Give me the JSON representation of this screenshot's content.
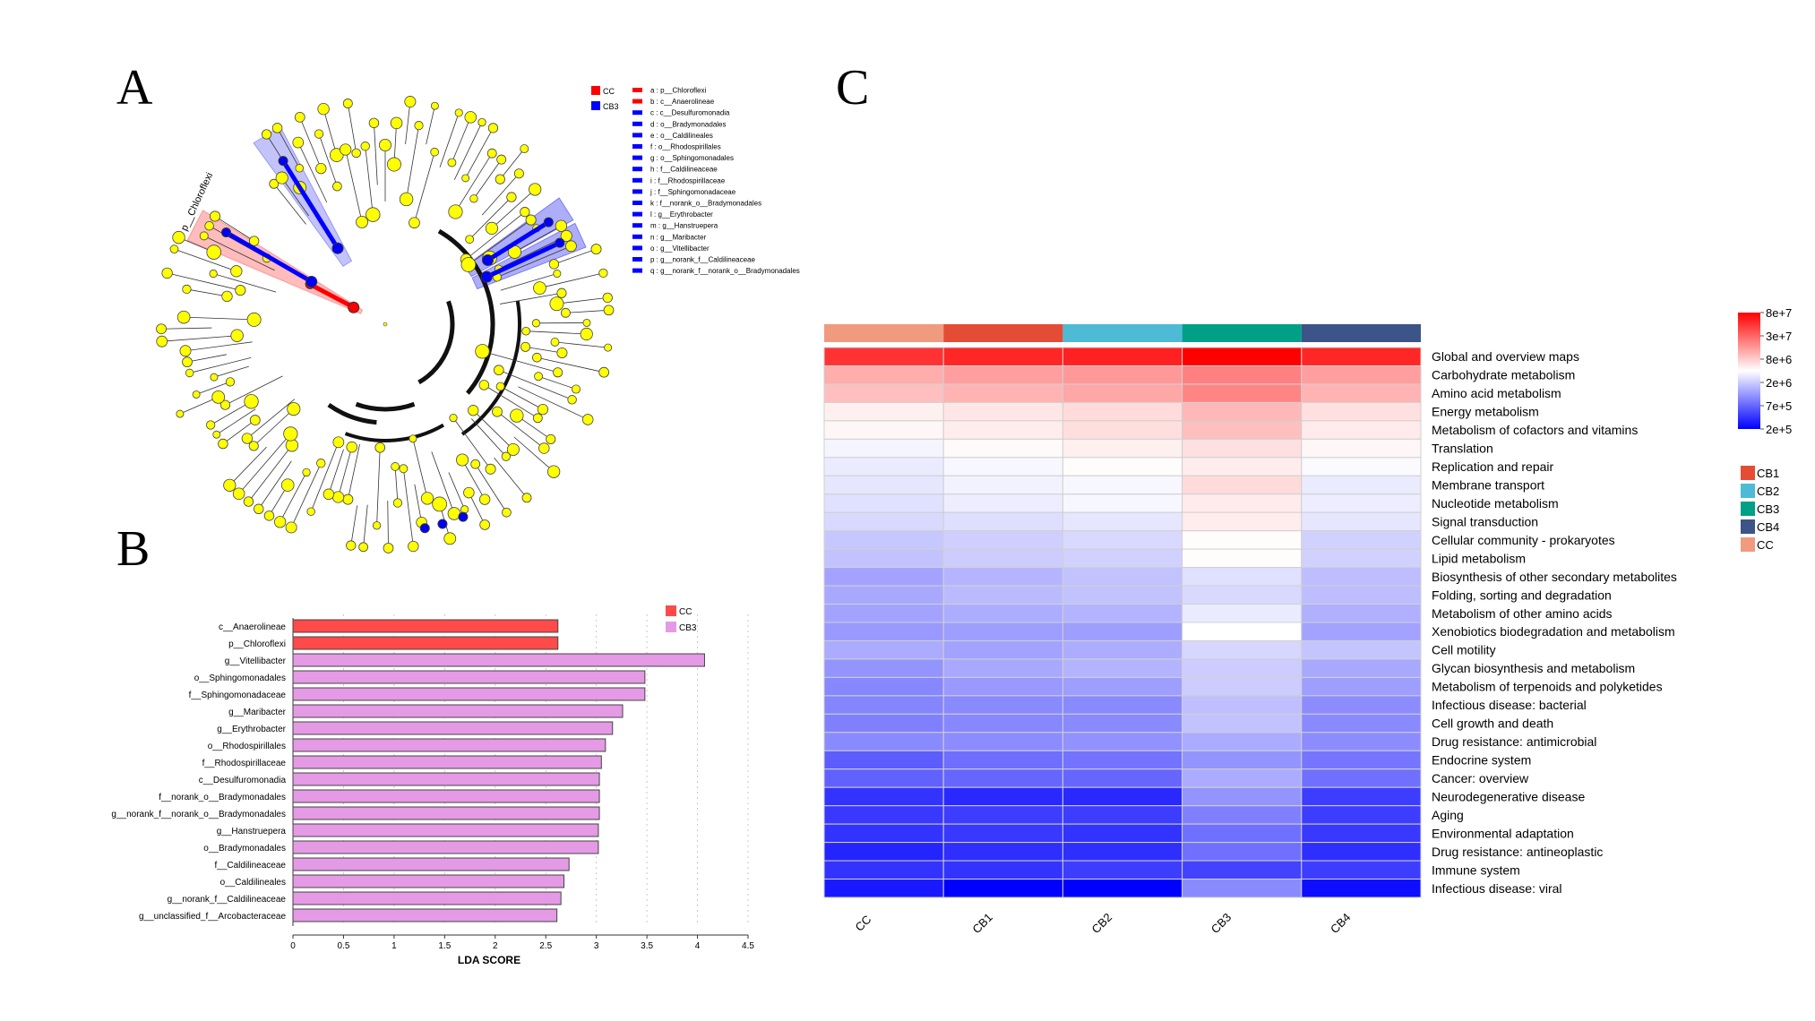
{
  "panels": {
    "a_label": "A",
    "b_label": "B",
    "c_label": "C"
  },
  "chart_data": [
    {
      "id": "cladogram",
      "type": "cladogram",
      "title": "",
      "colors": {
        "CC": "#ff0000",
        "CB3": "#0000ff",
        "node": "#ffff00"
      },
      "legend_groups": [
        {
          "name": "CC",
          "color": "#ff0000"
        },
        {
          "name": "CB3",
          "color": "#0000ff"
        }
      ],
      "highlighted_clade_label": "p__Chloroflexi",
      "taxa": [
        {
          "key": "a",
          "name": "p__Chloroflexi",
          "group": "CC"
        },
        {
          "key": "b",
          "name": "c__Anaerolineae",
          "group": "CC"
        },
        {
          "key": "c",
          "name": "c__Desulfuromonadia",
          "group": "CB3"
        },
        {
          "key": "d",
          "name": "o__Bradymonadales",
          "group": "CB3"
        },
        {
          "key": "e",
          "name": "o__Caldilineales",
          "group": "CB3"
        },
        {
          "key": "f",
          "name": "o__Rhodospirillales",
          "group": "CB3"
        },
        {
          "key": "g",
          "name": "o__Sphingomonadales",
          "group": "CB3"
        },
        {
          "key": "h",
          "name": "f__Caldilineaceae",
          "group": "CB3"
        },
        {
          "key": "i",
          "name": "f__Rhodospirillaceae",
          "group": "CB3"
        },
        {
          "key": "j",
          "name": "f__Sphingomonadaceae",
          "group": "CB3"
        },
        {
          "key": "k",
          "name": "f__norank_o__Bradymonadales",
          "group": "CB3"
        },
        {
          "key": "l",
          "name": "g__Erythrobacter",
          "group": "CB3"
        },
        {
          "key": "m",
          "name": "g__Hanstruepera",
          "group": "CB3"
        },
        {
          "key": "n",
          "name": "g__Maribacter",
          "group": "CB3"
        },
        {
          "key": "o",
          "name": "g__Vitellibacter",
          "group": "CB3"
        },
        {
          "key": "p",
          "name": "g__norank_f__Caldilineaceae",
          "group": "CB3"
        },
        {
          "key": "q",
          "name": "g__norank_f__norank_o__Bradymonadales",
          "group": "CB3"
        }
      ]
    },
    {
      "id": "lda",
      "type": "bar",
      "orientation": "horizontal",
      "title": "",
      "xlabel": "LDA SCORE",
      "ylabel": "",
      "xlim": [
        0,
        4.5
      ],
      "xticks": [
        "0",
        "0.5",
        "1",
        "1.5",
        "2",
        "2.5",
        "3",
        "3.5",
        "4",
        "4.5"
      ],
      "grid": "vertical-dotted",
      "legend_position": "top-right",
      "legend": [
        {
          "name": "CC",
          "color": "#ff4a4a"
        },
        {
          "name": "CB3",
          "color": "#e49ae4"
        }
      ],
      "categories": [
        "c__Anaerolineae",
        "p__Chloroflexi",
        "g__Vitellibacter",
        "o__Sphingomonadales",
        "f__Sphingomonadaceae",
        "g__Maribacter",
        "g__Erythrobacter",
        "o__Rhodospirillales",
        "f__Rhodospirillaceae",
        "c__Desulfuromonadia",
        "f__norank_o__Bradymonadales",
        "g__norank_f__norank_o__Bradymonadales",
        "g__Hanstruepera",
        "o__Bradymonadales",
        "f__Caldilineaceae",
        "o__Caldilineales",
        "g__norank_f__Caldilineaceae",
        "g__unclassified_f__Arcobacteraceae"
      ],
      "values": [
        2.62,
        2.62,
        4.07,
        3.48,
        3.48,
        3.26,
        3.16,
        3.09,
        3.05,
        3.03,
        3.03,
        3.03,
        3.02,
        3.02,
        2.73,
        2.68,
        2.65,
        2.61
      ],
      "groups": [
        "CC",
        "CC",
        "CB3",
        "CB3",
        "CB3",
        "CB3",
        "CB3",
        "CB3",
        "CB3",
        "CB3",
        "CB3",
        "CB3",
        "CB3",
        "CB3",
        "CB3",
        "CB3",
        "CB3",
        "CB3"
      ]
    },
    {
      "id": "heatmap",
      "type": "heatmap",
      "title": "",
      "columns": [
        "CC",
        "CB1",
        "CB2",
        "CB3",
        "CB4"
      ],
      "column_group_colors": {
        "CC": "#f09a80",
        "CB1": "#e54c36",
        "CB2": "#4dbbd5",
        "CB3": "#00a087",
        "CB4": "#3c5488"
      },
      "group_legend": [
        {
          "name": "CB1",
          "color": "#e54c36"
        },
        {
          "name": "CB2",
          "color": "#4dbbd5"
        },
        {
          "name": "CB3",
          "color": "#00a087"
        },
        {
          "name": "CB4",
          "color": "#3c5488"
        },
        {
          "name": "CC",
          "color": "#f09a80"
        }
      ],
      "colorbar": {
        "ticks": [
          "8e+7",
          "3e+7",
          "8e+6",
          "2e+6",
          "7e+5",
          "2e+5"
        ],
        "low_color": "#0000ff",
        "mid_color": "#ffffff",
        "high_color": "#ff0000",
        "scale": "log"
      },
      "value_encoding": "relative log-scale intensity: -1 = 2e+5 (blue), 0 = midpoint (white), 1 = 8e+7 (red)",
      "rows": [
        {
          "name": "Global and overview maps",
          "values": [
            0.8,
            0.85,
            0.87,
            1.0,
            0.85
          ]
        },
        {
          "name": "Carbohydrate metabolism",
          "values": [
            0.32,
            0.38,
            0.4,
            0.5,
            0.38
          ]
        },
        {
          "name": "Amino acid metabolism",
          "values": [
            0.25,
            0.3,
            0.35,
            0.48,
            0.3
          ]
        },
        {
          "name": "Energy metabolism",
          "values": [
            0.06,
            0.1,
            0.14,
            0.28,
            0.12
          ]
        },
        {
          "name": "Metabolism of cofactors and vitamins",
          "values": [
            0.03,
            0.07,
            0.13,
            0.25,
            0.08
          ]
        },
        {
          "name": "Translation",
          "values": [
            -0.04,
            0.02,
            0.06,
            0.12,
            0.03
          ]
        },
        {
          "name": "Replication and repair",
          "values": [
            -0.08,
            -0.03,
            0.01,
            0.07,
            -0.02
          ]
        },
        {
          "name": "Membrane transport",
          "values": [
            -0.1,
            -0.05,
            -0.03,
            0.14,
            -0.08
          ]
        },
        {
          "name": "Nucleotide metabolism",
          "values": [
            -0.12,
            -0.07,
            -0.03,
            0.08,
            -0.07
          ]
        },
        {
          "name": "Signal transduction",
          "values": [
            -0.15,
            -0.13,
            -0.1,
            0.07,
            -0.1
          ]
        },
        {
          "name": "Cellular community - prokaryotes",
          "values": [
            -0.22,
            -0.19,
            -0.15,
            0.01,
            -0.18
          ]
        },
        {
          "name": "Lipid metabolism",
          "values": [
            -0.24,
            -0.2,
            -0.18,
            0.01,
            -0.18
          ]
        },
        {
          "name": "Biosynthesis of other secondary metabolites",
          "values": [
            -0.36,
            -0.29,
            -0.24,
            -0.12,
            -0.26
          ]
        },
        {
          "name": "Folding, sorting and degradation",
          "values": [
            -0.34,
            -0.27,
            -0.24,
            -0.15,
            -0.26
          ]
        },
        {
          "name": "Metabolism of other amino acids",
          "values": [
            -0.36,
            -0.32,
            -0.3,
            -0.08,
            -0.31
          ]
        },
        {
          "name": "Xenobiotics biodegradation and metabolism",
          "values": [
            -0.4,
            -0.38,
            -0.38,
            0.0,
            -0.36
          ]
        },
        {
          "name": "Cell motility",
          "values": [
            -0.33,
            -0.36,
            -0.32,
            -0.16,
            -0.23
          ]
        },
        {
          "name": "Glycan biosynthesis and metabolism",
          "values": [
            -0.42,
            -0.34,
            -0.3,
            -0.2,
            -0.34
          ]
        },
        {
          "name": "Metabolism of terpenoids and polyketides",
          "values": [
            -0.47,
            -0.4,
            -0.38,
            -0.2,
            -0.38
          ]
        },
        {
          "name": "Infectious disease: bacterial",
          "values": [
            -0.48,
            -0.46,
            -0.46,
            -0.25,
            -0.45
          ]
        },
        {
          "name": "Cell growth and death",
          "values": [
            -0.5,
            -0.47,
            -0.46,
            -0.24,
            -0.46
          ]
        },
        {
          "name": "Drug resistance: antimicrobial",
          "values": [
            -0.46,
            -0.45,
            -0.43,
            -0.33,
            -0.45
          ]
        },
        {
          "name": "Endocrine system",
          "values": [
            -0.64,
            -0.57,
            -0.55,
            -0.42,
            -0.54
          ]
        },
        {
          "name": "Cancer: overview",
          "values": [
            -0.62,
            -0.6,
            -0.6,
            -0.33,
            -0.56
          ]
        },
        {
          "name": "Neurodegenerative disease",
          "values": [
            -0.8,
            -0.84,
            -0.84,
            -0.42,
            -0.76
          ]
        },
        {
          "name": "Aging",
          "values": [
            -0.78,
            -0.76,
            -0.76,
            -0.5,
            -0.76
          ]
        },
        {
          "name": "Environmental adaptation",
          "values": [
            -0.8,
            -0.78,
            -0.8,
            -0.56,
            -0.78
          ]
        },
        {
          "name": "Drug resistance: antineoplastic",
          "values": [
            -0.86,
            -0.82,
            -0.82,
            -0.56,
            -0.82
          ]
        },
        {
          "name": "Immune system",
          "values": [
            -0.8,
            -0.8,
            -0.76,
            -0.74,
            -0.76
          ]
        },
        {
          "name": "Infectious disease: viral",
          "values": [
            -0.9,
            -1.0,
            -1.0,
            -0.46,
            -0.95
          ]
        }
      ]
    }
  ]
}
